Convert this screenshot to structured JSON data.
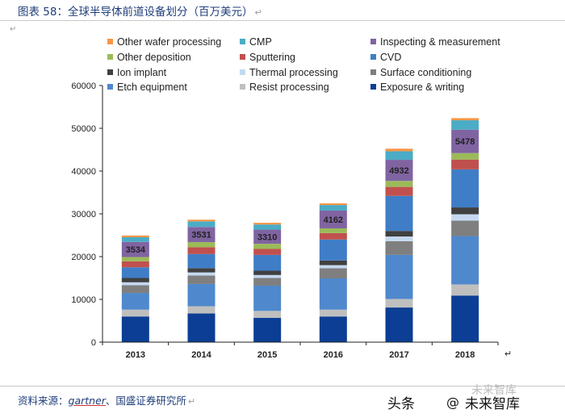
{
  "header": {
    "title": "图表 58：全球半导体前道设备划分（百万美元）",
    "return_mark": "↵"
  },
  "source": {
    "prefix": "资料来源：",
    "em": "gartner",
    "suffix": "、国盛证券研究所"
  },
  "watermark": {
    "toutiao": "头条",
    "logo": "@",
    "brand": "未来智库",
    "ghost": "未来智库"
  },
  "colors": {
    "Exposure & writing": "#0b3e94",
    "Resist processing": "#bfbfbf",
    "Etch equipment": "#4f88cd",
    "Surface conditioning": "#7f7f7f",
    "Thermal processing": "#c5d9f1",
    "Ion implant": "#404040",
    "CVD": "#3f7dc7",
    "Sputtering": "#c0504d",
    "Other deposition": "#9bbb59",
    "Inspecting & measurement": "#8064a2",
    "CMP": "#4bacc6",
    "Other wafer processing": "#f79646"
  },
  "chart_data": {
    "type": "bar",
    "stacked": true,
    "categories": [
      "2013",
      "2014",
      "2015",
      "2016",
      "2017",
      "2018"
    ],
    "ylim": [
      0,
      60000
    ],
    "yticks": [
      0,
      10000,
      20000,
      30000,
      40000,
      50000,
      60000
    ],
    "grid": false,
    "legend_position": "top",
    "legend_order": [
      "Other wafer processing",
      "CMP",
      "Inspecting & measurement",
      "Other deposition",
      "Sputtering",
      "CVD",
      "Ion implant",
      "Thermal processing",
      "Surface conditioning",
      "Etch equipment",
      "Resist processing",
      "Exposure & writing"
    ],
    "series": [
      {
        "name": "Exposure & writing",
        "values": [
          6000,
          6700,
          5700,
          6000,
          8100,
          10900
        ]
      },
      {
        "name": "Resist processing",
        "values": [
          1600,
          1700,
          1600,
          1600,
          2000,
          2600
        ]
      },
      {
        "name": "Etch equipment",
        "values": [
          3900,
          5200,
          5900,
          7300,
          10300,
          11300
        ]
      },
      {
        "name": "Surface conditioning",
        "values": [
          1800,
          2000,
          1800,
          2400,
          3200,
          3600
        ]
      },
      {
        "name": "Thermal processing",
        "values": [
          700,
          700,
          700,
          700,
          1100,
          1500
        ]
      },
      {
        "name": "Ion implant",
        "values": [
          1000,
          1000,
          1000,
          1100,
          1300,
          1600
        ]
      },
      {
        "name": "CVD",
        "values": [
          2500,
          3300,
          3700,
          4900,
          8200,
          8900
        ]
      },
      {
        "name": "Sputtering",
        "values": [
          1400,
          1600,
          1400,
          1500,
          2100,
          2300
        ]
      },
      {
        "name": "Other deposition",
        "values": [
          1000,
          1200,
          1200,
          1100,
          1400,
          1500
        ]
      },
      {
        "name": "Inspecting & measurement",
        "values": [
          3534,
          3531,
          3310,
          4162,
          4932,
          5478
        ]
      },
      {
        "name": "CMP",
        "values": [
          1100,
          1300,
          1200,
          1300,
          2000,
          2200
        ]
      },
      {
        "name": "Other wafer processing",
        "values": [
          400,
          400,
          400,
          400,
          600,
          500
        ]
      }
    ],
    "data_labels": {
      "series": "Inspecting & measurement",
      "values": [
        "3534",
        "3531",
        "3310",
        "4162",
        "4932",
        "5478"
      ]
    }
  }
}
